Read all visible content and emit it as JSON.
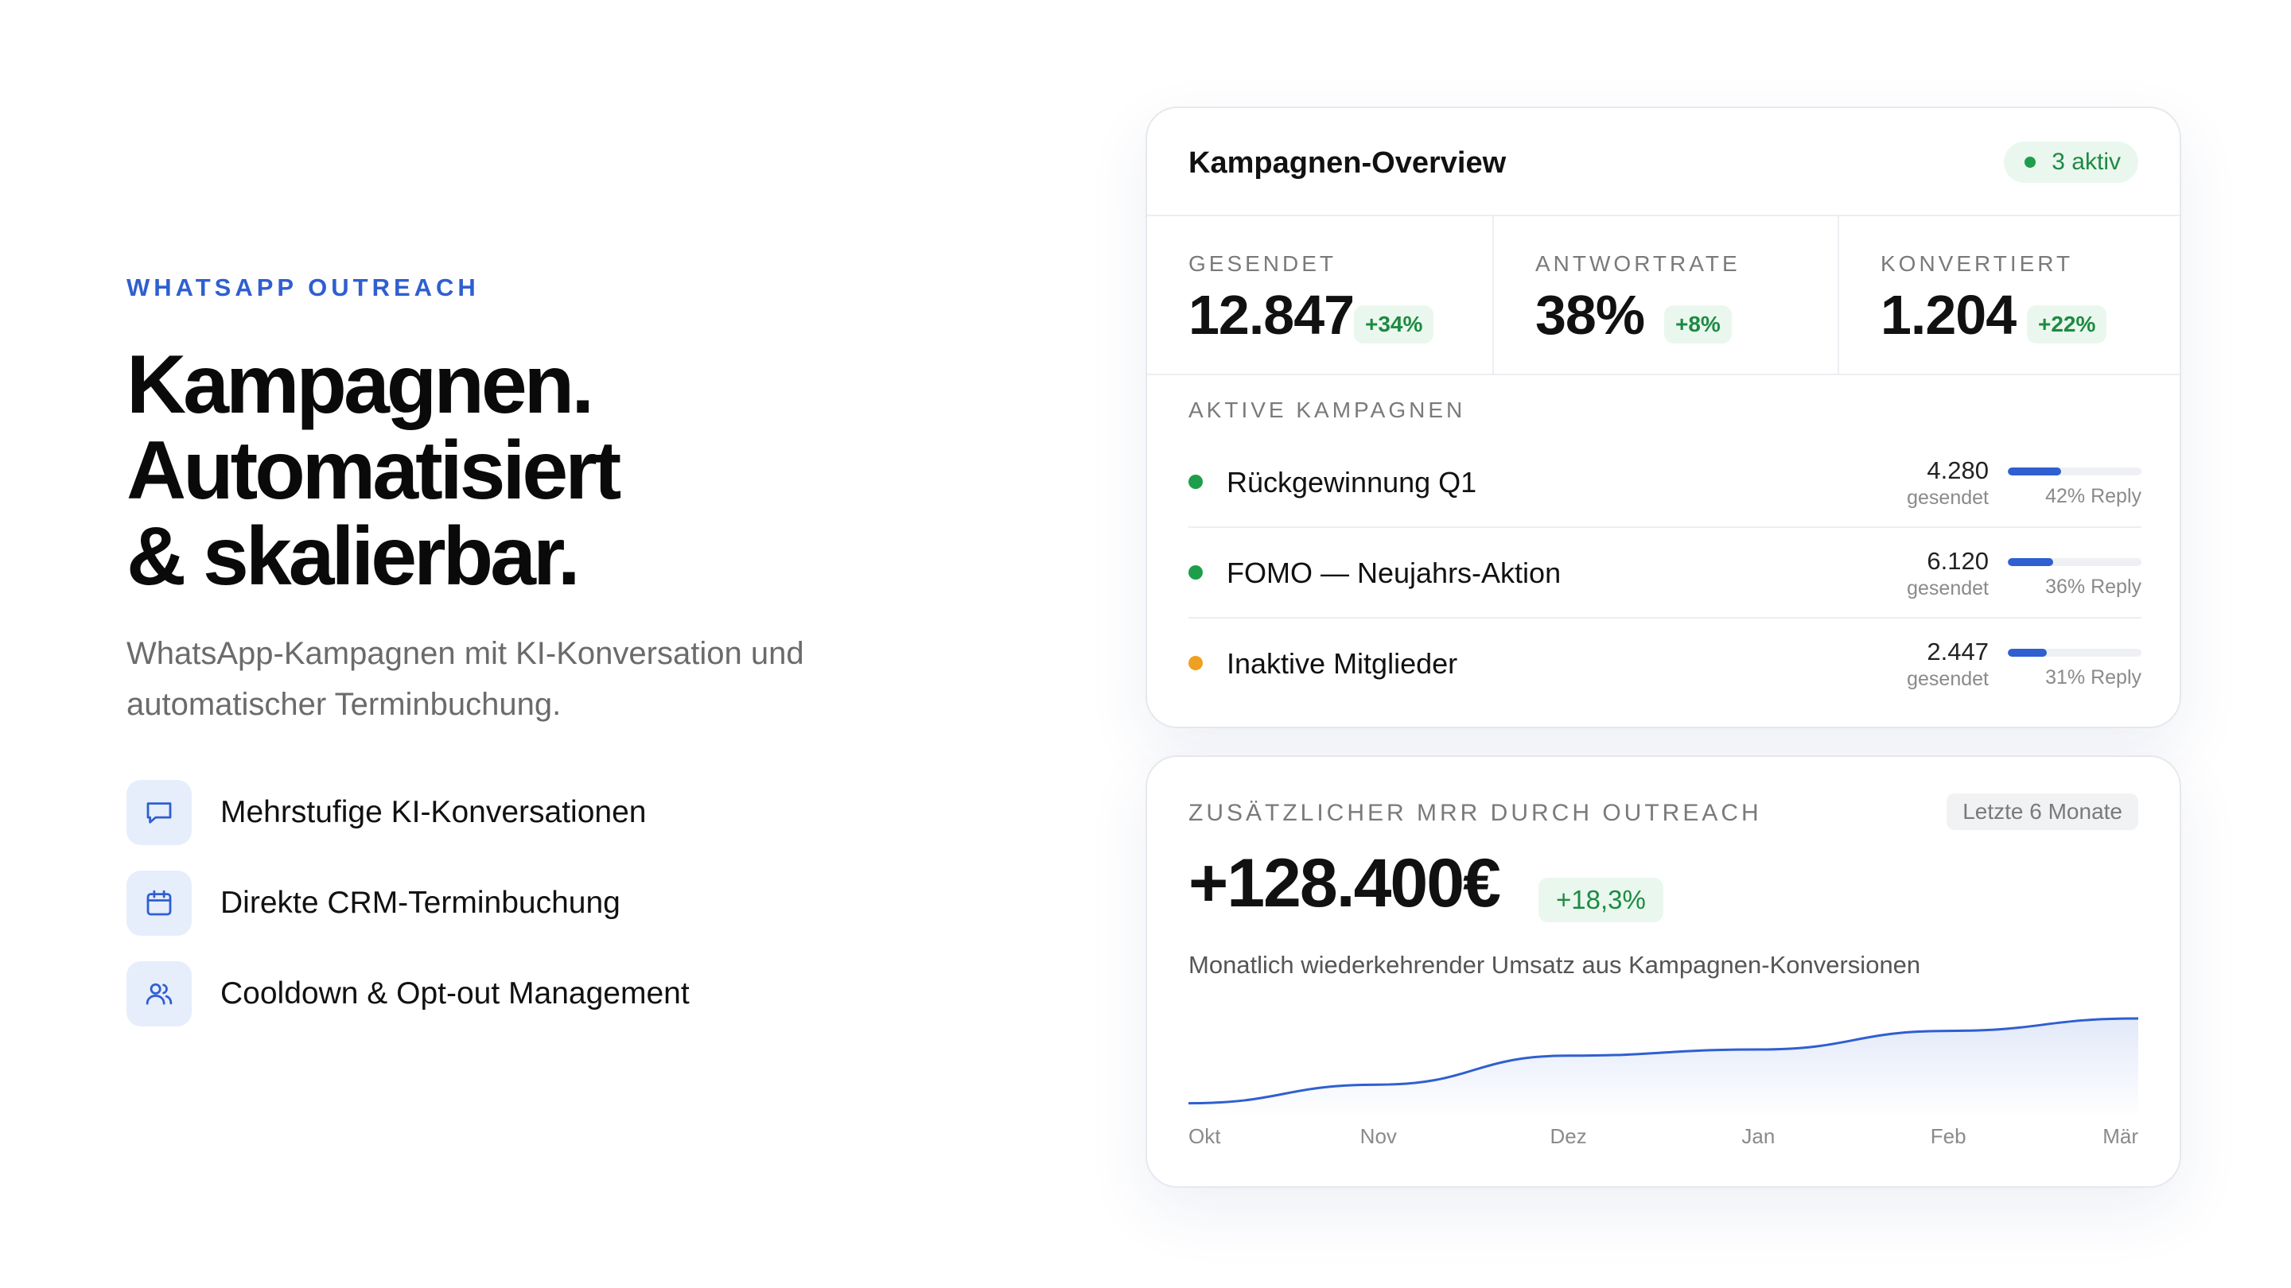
{
  "hero": {
    "eyebrow": "WHATSAPP OUTREACH",
    "headline": [
      "Kampagnen.",
      "Automatisiert",
      "& skalierbar."
    ],
    "subtitle": "WhatsApp-Kampagnen mit KI-Konversation und automatischer Terminbuchung."
  },
  "features": [
    {
      "icon": "chat-bubble-icon",
      "label": "Mehrstufige KI-Konversationen"
    },
    {
      "icon": "calendar-icon",
      "label": "Direkte CRM-Terminbuchung"
    },
    {
      "icon": "users-icon",
      "label": "Cooldown & Opt-out Management"
    }
  ],
  "overview": {
    "title": "Kampagnen-Overview",
    "active_badge": "3 aktiv",
    "stats": [
      {
        "label": "GESENDET",
        "value": "12.847",
        "delta": "+34%"
      },
      {
        "label": "ANTWORTRATE",
        "value": "38%",
        "delta": "+8%"
      },
      {
        "label": "KONVERTIERT",
        "value": "1.204",
        "delta": "+22%"
      }
    ],
    "section_label": "AKTIVE KAMPAGNEN",
    "campaigns": [
      {
        "name": "Rückgewinnung Q1",
        "count": "4.280",
        "count_label": "gesendet",
        "reply_label": "42% Reply",
        "reply_rate": 0.42,
        "status_color": "#1e9e4b"
      },
      {
        "name": "FOMO — Neujahrs-Aktion",
        "count": "6.120",
        "count_label": "gesendet",
        "reply_label": "36% Reply",
        "reply_rate": 0.36,
        "status_color": "#1e9e4b"
      },
      {
        "name": "Inaktive Mitglieder",
        "count": "2.447",
        "count_label": "gesendet",
        "reply_label": "31% Reply",
        "reply_rate": 0.31,
        "status_color": "#f0a020"
      }
    ]
  },
  "mrr": {
    "label": "ZUSÄTZLICHER MRR DURCH OUTREACH",
    "period": "Letzte 6 Monate",
    "value": "+128.400€",
    "delta": "+18,3%",
    "description": "Monatlich wiederkehrender Umsatz aus Kampagnen-Konversionen",
    "line_color": "#2f5fd0"
  },
  "chart_data": {
    "type": "area",
    "x": [
      "Okt",
      "Nov",
      "Dez",
      "Jan",
      "Feb",
      "Mär"
    ],
    "values": [
      8,
      26,
      54,
      60,
      78,
      90
    ],
    "ylim": [
      0,
      100
    ],
    "title": "",
    "xlabel": "",
    "ylabel": "",
    "grid": false
  }
}
